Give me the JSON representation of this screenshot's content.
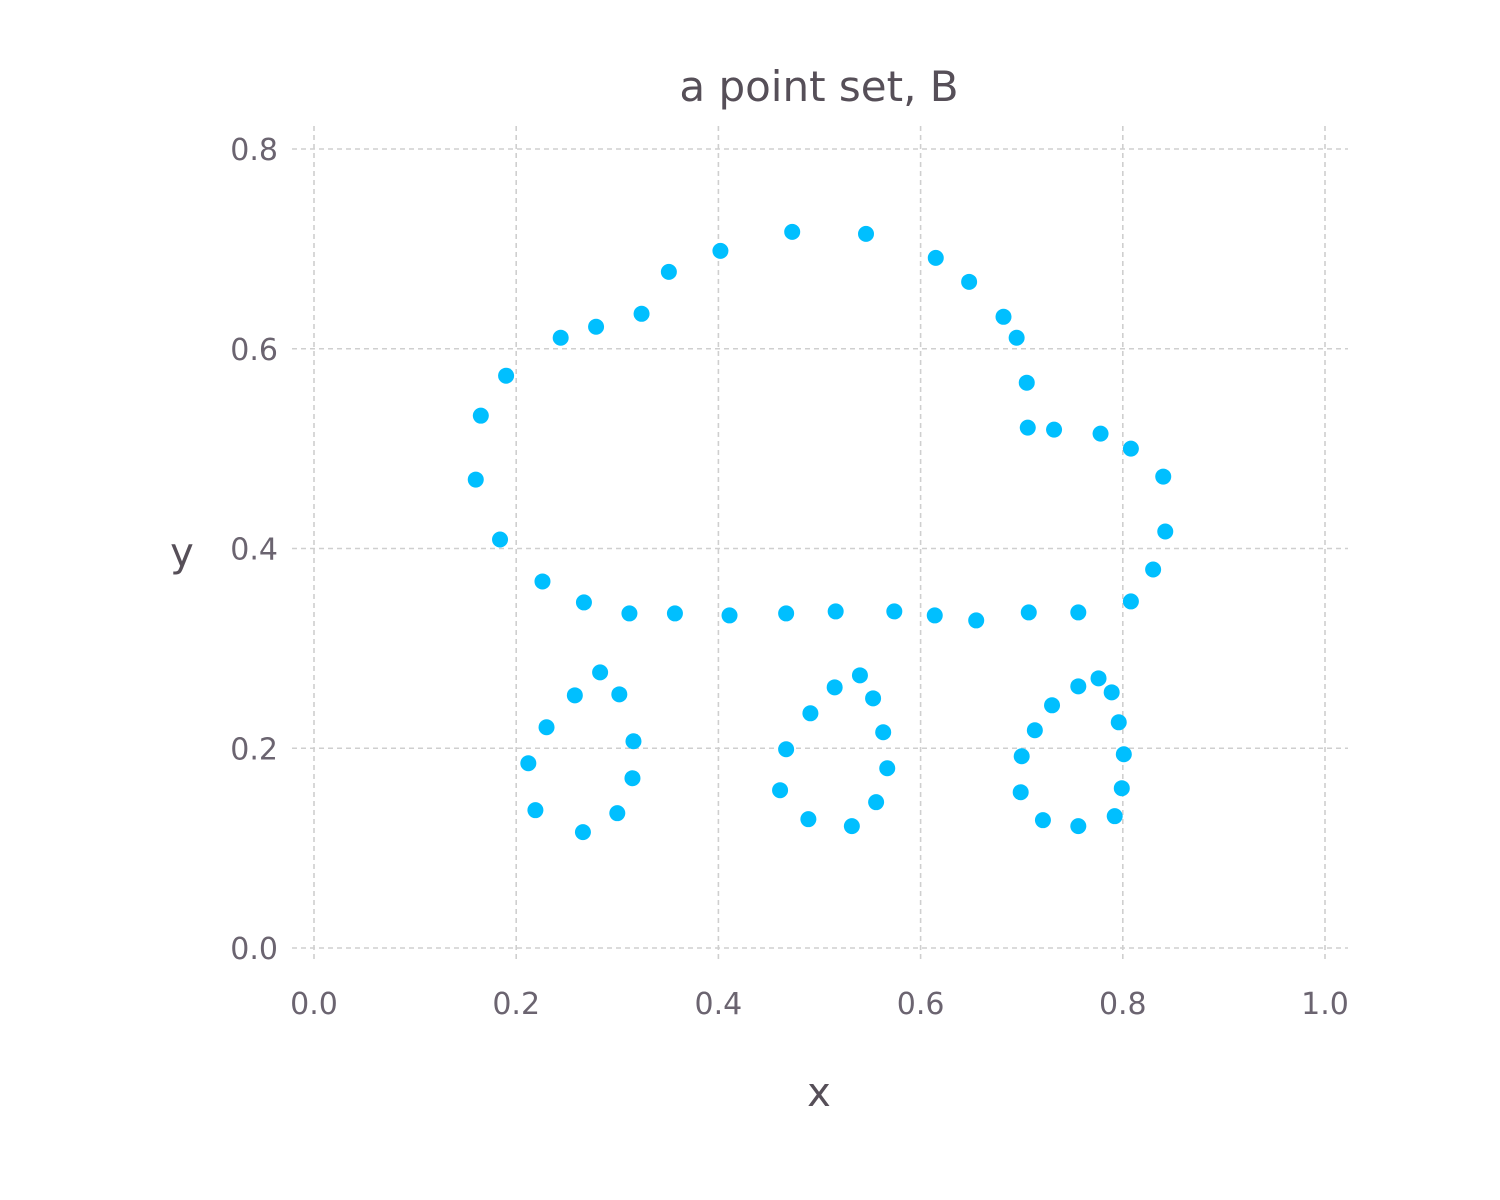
{
  "chart_data": {
    "type": "scatter",
    "title": "a point set, B",
    "xlabel": "x",
    "ylabel": "y",
    "xlim": [
      0.0,
      1.0
    ],
    "ylim": [
      0.0,
      0.8
    ],
    "xticks": [
      "0.0",
      "0.2",
      "0.4",
      "0.6",
      "0.8",
      "1.0"
    ],
    "yticks": [
      "0.0",
      "0.2",
      "0.4",
      "0.6",
      "0.8"
    ],
    "grid": true,
    "marker_color": "#00bfff",
    "points": [
      [
        0.16,
        0.469
      ],
      [
        0.165,
        0.533
      ],
      [
        0.19,
        0.573
      ],
      [
        0.184,
        0.409
      ],
      [
        0.244,
        0.611
      ],
      [
        0.279,
        0.622
      ],
      [
        0.324,
        0.635
      ],
      [
        0.351,
        0.677
      ],
      [
        0.402,
        0.698
      ],
      [
        0.473,
        0.717
      ],
      [
        0.546,
        0.715
      ],
      [
        0.615,
        0.691
      ],
      [
        0.648,
        0.667
      ],
      [
        0.682,
        0.632
      ],
      [
        0.695,
        0.611
      ],
      [
        0.705,
        0.566
      ],
      [
        0.706,
        0.521
      ],
      [
        0.732,
        0.519
      ],
      [
        0.778,
        0.515
      ],
      [
        0.808,
        0.5
      ],
      [
        0.84,
        0.472
      ],
      [
        0.842,
        0.417
      ],
      [
        0.83,
        0.379
      ],
      [
        0.808,
        0.347
      ],
      [
        0.226,
        0.367
      ],
      [
        0.267,
        0.346
      ],
      [
        0.312,
        0.335
      ],
      [
        0.357,
        0.335
      ],
      [
        0.411,
        0.333
      ],
      [
        0.467,
        0.335
      ],
      [
        0.516,
        0.337
      ],
      [
        0.574,
        0.337
      ],
      [
        0.614,
        0.333
      ],
      [
        0.655,
        0.328
      ],
      [
        0.707,
        0.336
      ],
      [
        0.756,
        0.336
      ],
      [
        0.283,
        0.276
      ],
      [
        0.302,
        0.254
      ],
      [
        0.258,
        0.253
      ],
      [
        0.23,
        0.221
      ],
      [
        0.316,
        0.207
      ],
      [
        0.212,
        0.185
      ],
      [
        0.315,
        0.17
      ],
      [
        0.219,
        0.138
      ],
      [
        0.3,
        0.135
      ],
      [
        0.266,
        0.116
      ],
      [
        0.54,
        0.273
      ],
      [
        0.515,
        0.261
      ],
      [
        0.553,
        0.25
      ],
      [
        0.491,
        0.235
      ],
      [
        0.563,
        0.216
      ],
      [
        0.467,
        0.199
      ],
      [
        0.567,
        0.18
      ],
      [
        0.461,
        0.158
      ],
      [
        0.556,
        0.146
      ],
      [
        0.489,
        0.129
      ],
      [
        0.532,
        0.122
      ],
      [
        0.776,
        0.27
      ],
      [
        0.756,
        0.262
      ],
      [
        0.789,
        0.256
      ],
      [
        0.73,
        0.243
      ],
      [
        0.796,
        0.226
      ],
      [
        0.713,
        0.218
      ],
      [
        0.801,
        0.194
      ],
      [
        0.7,
        0.192
      ],
      [
        0.799,
        0.16
      ],
      [
        0.699,
        0.156
      ],
      [
        0.721,
        0.128
      ],
      [
        0.756,
        0.122
      ],
      [
        0.792,
        0.132
      ]
    ]
  }
}
